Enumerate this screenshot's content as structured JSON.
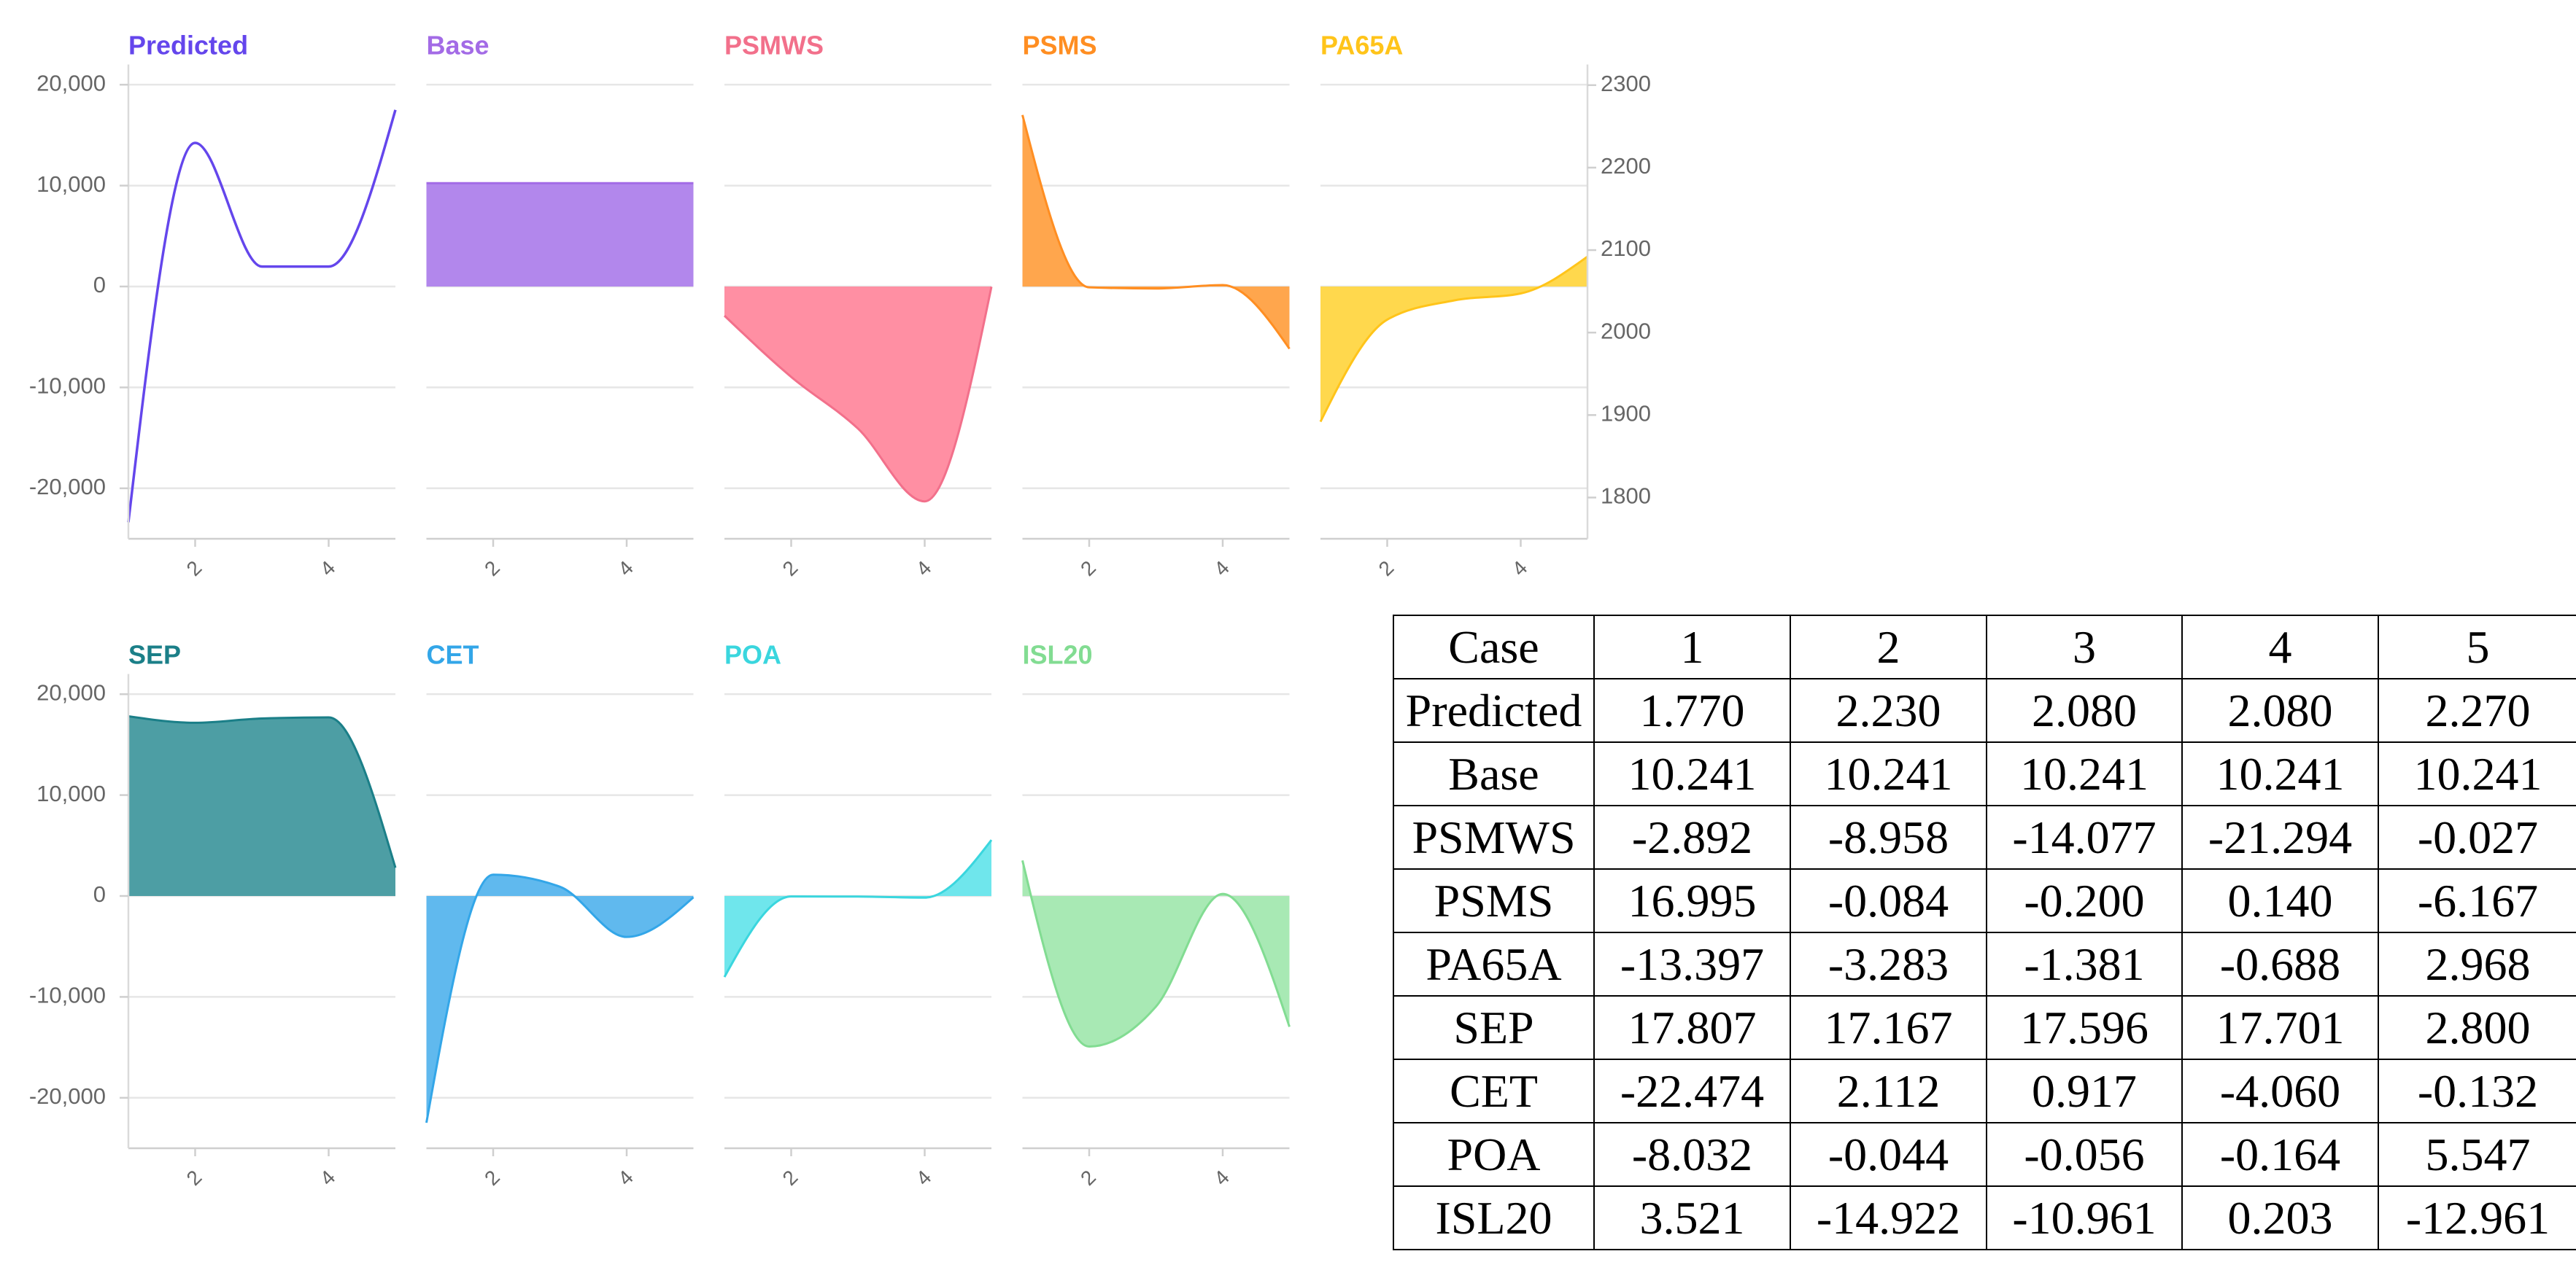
{
  "chart_data": [
    {
      "type": "area",
      "x": [
        1,
        2,
        3,
        4,
        5
      ],
      "xlim": [
        1,
        5
      ],
      "x_tick_values": [
        2,
        4
      ],
      "x_tick_labels": [
        "2",
        "4"
      ],
      "ylim": [
        -25000,
        22000
      ],
      "y_tick_values": [
        20000,
        10000,
        0,
        -10000,
        -20000
      ],
      "y_tick_labels": [
        "20,000",
        "10,000",
        "0",
        "-10,000",
        "-20,000"
      ],
      "right_axis": {
        "ylim": [
          1750,
          2325
        ],
        "tick_values": [
          2300,
          2200,
          2100,
          2000,
          1900,
          1800
        ],
        "tick_labels": [
          "2300",
          "2200",
          "2100",
          "2000",
          "1900",
          "1800"
        ]
      },
      "series": [
        {
          "name": "Predicted",
          "filled": false,
          "secondary_axis": true,
          "color": "#6446ec",
          "values": [
            1770,
            2230,
            2080,
            2080,
            2270
          ]
        },
        {
          "name": "Base",
          "filled": true,
          "color": "#a36be6",
          "fill": "#b287ec",
          "values": [
            10241,
            10241,
            10241,
            10241,
            10241
          ]
        },
        {
          "name": "PSMWS",
          "filled": true,
          "color": "#f2708b",
          "fill": "#ff8fa3",
          "values": [
            -2892,
            -8958,
            -14077,
            -21294,
            -27
          ]
        },
        {
          "name": "PSMS",
          "filled": true,
          "color": "#ff8e22",
          "fill": "#ffa64d",
          "values": [
            16995,
            -84,
            -200,
            140,
            -6167
          ]
        },
        {
          "name": "PA65A",
          "filled": true,
          "color": "#ffc41a",
          "fill": "#ffd84d",
          "values": [
            -13397,
            -3283,
            -1381,
            -688,
            2968
          ]
        },
        {
          "name": "SEP",
          "filled": true,
          "color": "#1b7f88",
          "fill": "#4d9ea4",
          "values": [
            17807,
            17167,
            17596,
            17701,
            2800
          ]
        },
        {
          "name": "CET",
          "filled": true,
          "color": "#33a6e8",
          "fill": "#60b9ee",
          "values": [
            -22474,
            2112,
            917,
            -4060,
            -132
          ]
        },
        {
          "name": "POA",
          "filled": true,
          "color": "#3ad6de",
          "fill": "#6fe6ec",
          "values": [
            -8032,
            -44,
            -56,
            -164,
            5547
          ]
        },
        {
          "name": "ISL20",
          "filled": true,
          "color": "#82dc92",
          "fill": "#a8e9b4",
          "values": [
            3521,
            -14922,
            -10961,
            203,
            -12961
          ]
        }
      ]
    },
    {
      "type": "table",
      "columns": [
        "Case",
        "1",
        "2",
        "3",
        "4",
        "5"
      ],
      "rows": [
        [
          "Predicted",
          "1.770",
          "2.230",
          "2.080",
          "2.080",
          "2.270"
        ],
        [
          "Base",
          "10.241",
          "10.241",
          "10.241",
          "10.241",
          "10.241"
        ],
        [
          "PSMWS",
          "-2.892",
          "-8.958",
          "-14.077",
          "-21.294",
          "-0.027"
        ],
        [
          "PSMS",
          "16.995",
          "-0.084",
          "-0.200",
          "0.140",
          "-6.167"
        ],
        [
          "PA65A",
          "-13.397",
          "-3.283",
          "-1.381",
          "-0.688",
          "2.968"
        ],
        [
          "SEP",
          "17.807",
          "17.167",
          "17.596",
          "17.701",
          "2.800"
        ],
        [
          "CET",
          "-22.474",
          "2.112",
          "0.917",
          "-4.060",
          "-0.132"
        ],
        [
          "POA",
          "-8.032",
          "-0.044",
          "-0.056",
          "-0.164",
          "5.547"
        ],
        [
          "ISL20",
          "3.521",
          "-14.922",
          "-10.961",
          "0.203",
          "-12.961"
        ]
      ]
    }
  ]
}
